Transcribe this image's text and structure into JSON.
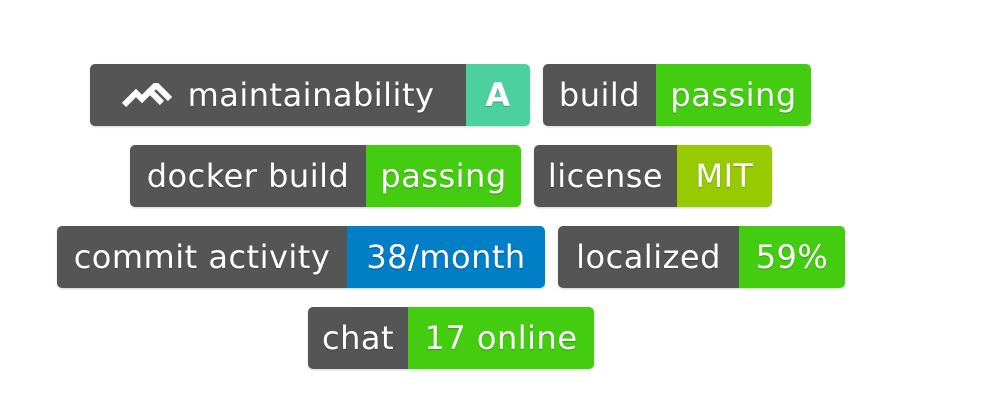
{
  "badges": {
    "maintainability": {
      "label": "maintainability",
      "value": "A",
      "color": "#4dd0a0",
      "logo": "codeclimate-logo-icon"
    },
    "build": {
      "label": "build",
      "value": "passing",
      "color": "#44cc11"
    },
    "docker_build": {
      "label": "docker build",
      "value": "passing",
      "color": "#44cc11"
    },
    "license": {
      "label": "license",
      "value": "MIT",
      "color": "#97ca00"
    },
    "commit_activity": {
      "label": "commit activity",
      "value": "38/month",
      "color": "#007ec6"
    },
    "localized": {
      "label": "localized",
      "value": "59%",
      "color": "#44cc11"
    },
    "chat": {
      "label": "chat",
      "value": "17 online",
      "color": "#44cc11"
    }
  },
  "colors": {
    "label_bg": "#555555",
    "text": "#ffffff"
  }
}
